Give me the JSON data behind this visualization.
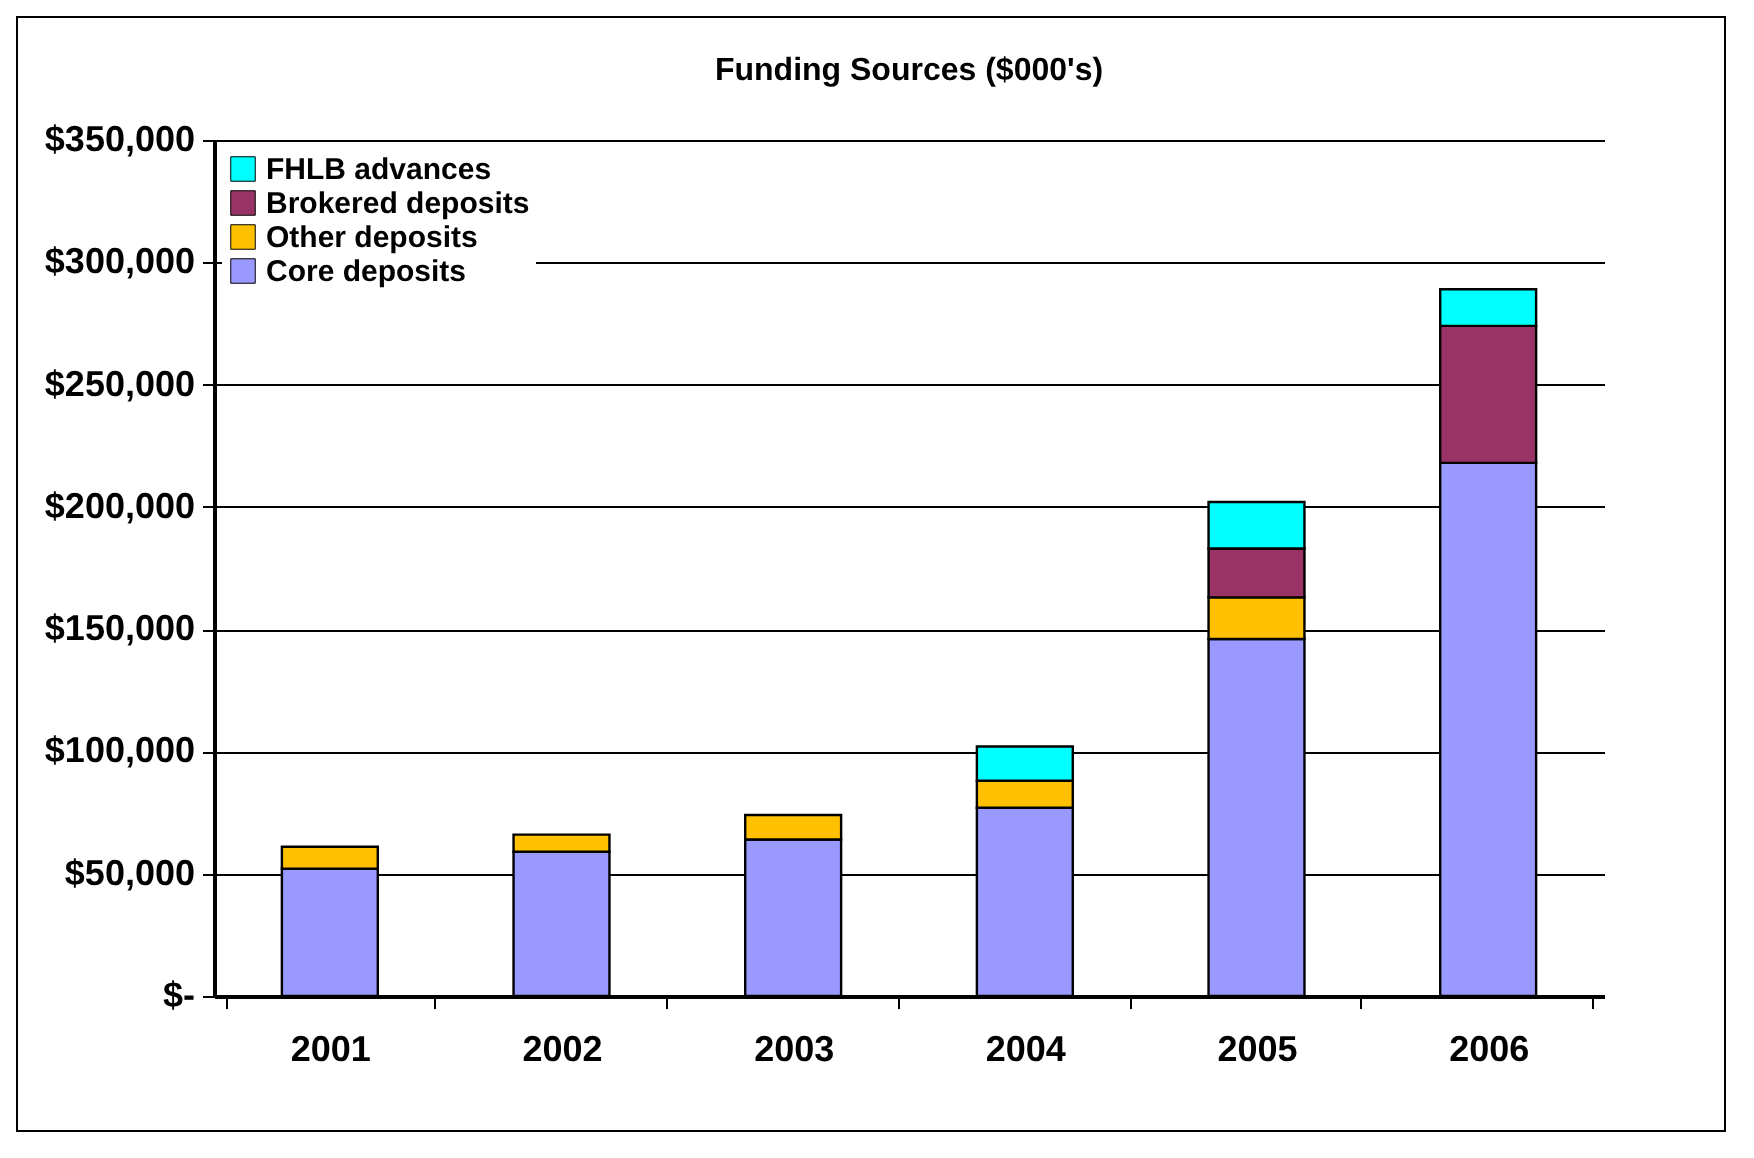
{
  "chart_data": {
    "type": "bar",
    "title": "Funding Sources ($000's)",
    "stacked": true,
    "legend": "top left",
    "grid": "y",
    "categories": [
      "2001",
      "2002",
      "2003",
      "2004",
      "2005",
      "2006"
    ],
    "series": [
      {
        "name": "Core deposits",
        "color": "#9999ff",
        "values": [
          52000,
          59000,
          64000,
          77000,
          146000,
          218000
        ]
      },
      {
        "name": "Other deposits",
        "color": "#ffc000",
        "values": [
          9000,
          7000,
          10000,
          11000,
          17000,
          null
        ]
      },
      {
        "name": "Brokered deposits",
        "color": "#993366",
        "values": [
          null,
          null,
          null,
          null,
          20000,
          56000
        ]
      },
      {
        "name": "FHLB advances",
        "color": "#00ffff",
        "values": [
          null,
          null,
          null,
          14000,
          19000,
          15000
        ]
      }
    ],
    "ylim": [
      0,
      350000
    ],
    "yticks": [
      {
        "value": 0,
        "label": "$-"
      },
      {
        "value": 50000,
        "label": "$50,000"
      },
      {
        "value": 100000,
        "label": "$100,000"
      },
      {
        "value": 150000,
        "label": "$150,000"
      },
      {
        "value": 200000,
        "label": "$200,000"
      },
      {
        "value": 250000,
        "label": "$250,000"
      },
      {
        "value": 300000,
        "label": "$300,000"
      },
      {
        "value": 350000,
        "label": "$350,000"
      }
    ]
  }
}
